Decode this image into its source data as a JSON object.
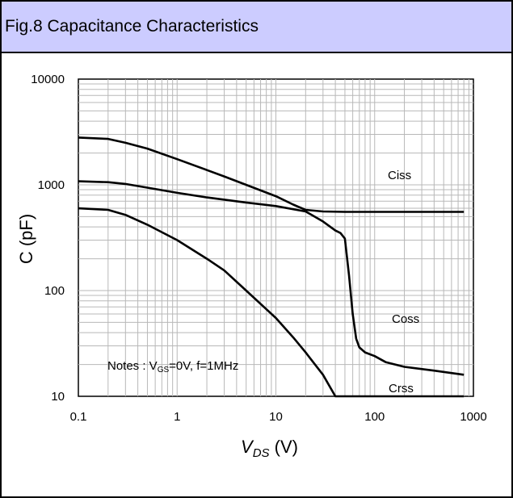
{
  "header": {
    "title": "Fig.8 Capacitance Characteristics"
  },
  "chart_data": {
    "type": "line",
    "title": "Fig.8 Capacitance Characteristics",
    "xlabel": {
      "main": "V",
      "sub": "DS",
      "unit": " (V)"
    },
    "ylabel": "C (pF)",
    "xscale": "log",
    "yscale": "log",
    "xlim": [
      0.1,
      1000
    ],
    "ylim": [
      10,
      10000
    ],
    "grid": true,
    "x_ticks": [
      "0.1",
      "1",
      "10",
      "100",
      "1000"
    ],
    "y_ticks": [
      "10",
      "100",
      "1000",
      "10000"
    ],
    "note": {
      "prefix": "Notes : V",
      "sub": "GS",
      "suffix": "=0V, f=1MHz"
    },
    "series": [
      {
        "name": "Ciss",
        "x": [
          0.1,
          0.2,
          0.3,
          0.5,
          1,
          2,
          3,
          5,
          10,
          15,
          20,
          30,
          50,
          100,
          200,
          500,
          800
        ],
        "y": [
          2800,
          2720,
          2500,
          2200,
          1750,
          1380,
          1200,
          1000,
          780,
          650,
          580,
          560,
          555,
          555,
          555,
          555,
          555
        ]
      },
      {
        "name": "Coss",
        "x": [
          0.1,
          0.2,
          0.3,
          0.5,
          1,
          2,
          5,
          10,
          20,
          30,
          40,
          45,
          50,
          55,
          60,
          65,
          70,
          80,
          100,
          130,
          200,
          400,
          800
        ],
        "y": [
          1080,
          1060,
          1020,
          940,
          840,
          760,
          680,
          630,
          560,
          450,
          370,
          350,
          310,
          140,
          60,
          35,
          29,
          26,
          24,
          21,
          19,
          17.5,
          16
        ]
      },
      {
        "name": "Crss",
        "x": [
          0.1,
          0.2,
          0.3,
          0.5,
          1,
          2,
          3,
          5,
          10,
          15,
          20,
          30,
          40,
          100,
          500,
          800
        ],
        "y": [
          600,
          580,
          520,
          420,
          300,
          200,
          155,
          100,
          55,
          36,
          26,
          16,
          10,
          10,
          10,
          10
        ]
      }
    ],
    "curve_labels": [
      "Ciss",
      "Coss",
      "Crss"
    ]
  }
}
